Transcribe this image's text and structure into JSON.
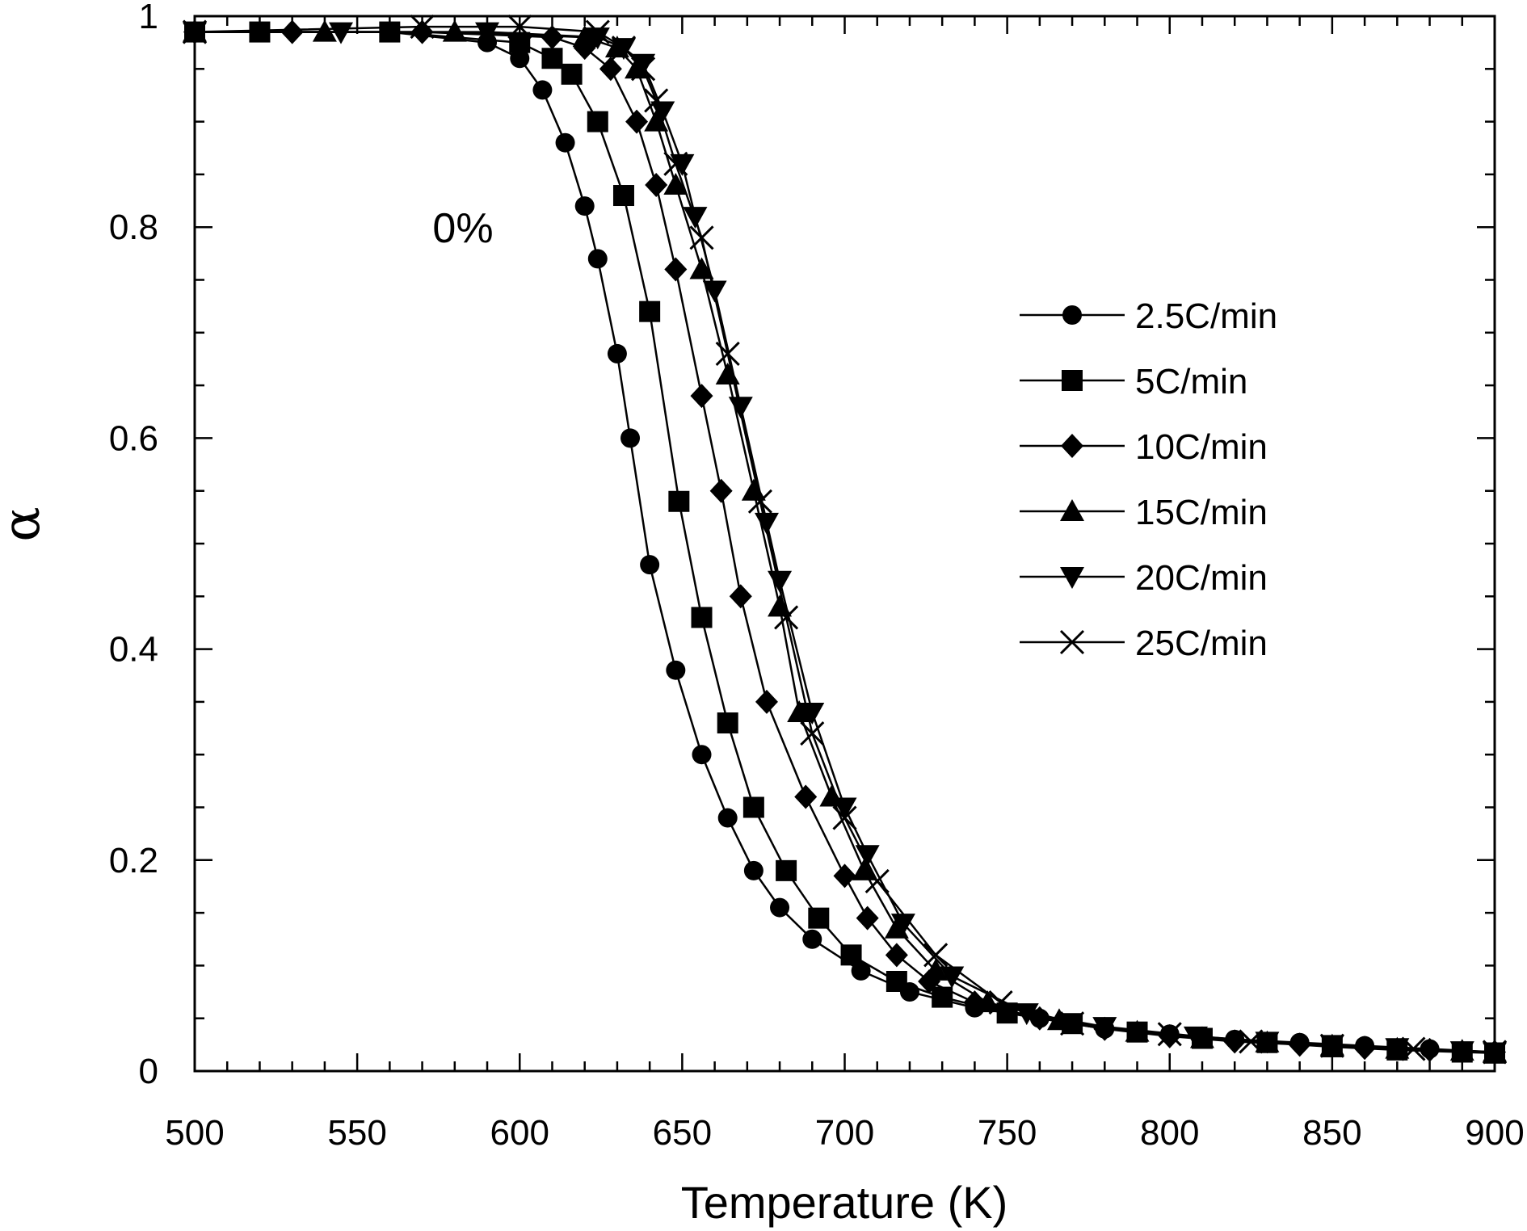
{
  "chart_data": {
    "type": "line",
    "title": "",
    "xlabel": "Temperature (K)",
    "ylabel": "α",
    "xlim": [
      500,
      900
    ],
    "ylim": [
      0,
      1
    ],
    "x_ticks": [
      "500",
      "550",
      "600",
      "650",
      "700",
      "750",
      "800",
      "850",
      "900"
    ],
    "y_ticks": [
      "0",
      "0.2",
      "0.4",
      "0.6",
      "0.8",
      "1"
    ],
    "annotation": "0%",
    "grid": false,
    "legend_position": "right",
    "series": [
      {
        "name": "2.5C/min",
        "marker": "circle",
        "x": [
          500,
          520,
          560,
          590,
          600,
          607,
          614,
          620,
          624,
          630,
          634,
          640,
          648,
          656,
          664,
          672,
          680,
          690,
          705,
          720,
          740,
          760,
          780,
          800,
          820,
          840,
          860,
          880,
          900
        ],
        "y": [
          0.985,
          0.985,
          0.985,
          0.975,
          0.96,
          0.93,
          0.88,
          0.82,
          0.77,
          0.68,
          0.6,
          0.48,
          0.38,
          0.3,
          0.24,
          0.19,
          0.155,
          0.125,
          0.095,
          0.075,
          0.06,
          0.05,
          0.04,
          0.035,
          0.03,
          0.027,
          0.024,
          0.021,
          0.018
        ]
      },
      {
        "name": "5C/min",
        "marker": "square",
        "x": [
          500,
          520,
          560,
          600,
          610,
          616,
          624,
          632,
          640,
          649,
          656,
          664,
          672,
          682,
          692,
          702,
          716,
          730,
          750,
          770,
          790,
          810,
          830,
          850,
          870,
          890,
          900
        ],
        "y": [
          0.985,
          0.985,
          0.985,
          0.975,
          0.96,
          0.945,
          0.9,
          0.83,
          0.72,
          0.54,
          0.43,
          0.33,
          0.25,
          0.19,
          0.145,
          0.11,
          0.085,
          0.07,
          0.055,
          0.045,
          0.037,
          0.031,
          0.027,
          0.023,
          0.02,
          0.018,
          0.017
        ]
      },
      {
        "name": "10C/min",
        "marker": "diamond",
        "x": [
          500,
          530,
          570,
          610,
          620,
          628,
          636,
          642,
          648,
          656,
          662,
          668,
          676,
          688,
          700,
          707,
          716,
          726,
          740,
          760,
          780,
          800,
          820,
          840,
          860,
          880,
          900
        ],
        "y": [
          0.985,
          0.985,
          0.985,
          0.98,
          0.97,
          0.95,
          0.9,
          0.84,
          0.76,
          0.64,
          0.55,
          0.45,
          0.35,
          0.26,
          0.185,
          0.145,
          0.11,
          0.085,
          0.065,
          0.05,
          0.04,
          0.033,
          0.028,
          0.025,
          0.022,
          0.02,
          0.018
        ]
      },
      {
        "name": "15C/min",
        "marker": "triangle-up",
        "x": [
          500,
          540,
          580,
          620,
          630,
          636,
          642,
          648,
          656,
          664,
          672,
          680,
          686,
          696,
          706,
          716,
          728,
          744,
          766,
          790,
          810,
          830,
          850,
          870,
          890,
          900
        ],
        "y": [
          0.985,
          0.985,
          0.985,
          0.98,
          0.97,
          0.95,
          0.9,
          0.84,
          0.76,
          0.66,
          0.55,
          0.44,
          0.34,
          0.26,
          0.19,
          0.135,
          0.095,
          0.065,
          0.048,
          0.037,
          0.031,
          0.027,
          0.024,
          0.021,
          0.019,
          0.018
        ]
      },
      {
        "name": "20C/min",
        "marker": "triangle-down",
        "x": [
          500,
          545,
          590,
          624,
          632,
          638,
          644,
          650,
          654,
          660,
          668,
          676,
          680,
          690,
          700,
          707,
          718,
          733,
          756,
          780,
          808,
          830,
          850,
          870,
          890,
          900
        ],
        "y": [
          0.985,
          0.985,
          0.985,
          0.98,
          0.97,
          0.955,
          0.91,
          0.86,
          0.81,
          0.74,
          0.63,
          0.52,
          0.465,
          0.34,
          0.25,
          0.205,
          0.14,
          0.09,
          0.055,
          0.042,
          0.033,
          0.028,
          0.025,
          0.022,
          0.019,
          0.018
        ]
      },
      {
        "name": "25C/min",
        "marker": "x",
        "x": [
          500,
          570,
          600,
          624,
          632,
          638,
          642,
          648,
          656,
          664,
          674,
          682,
          690,
          700,
          710,
          728,
          748,
          770,
          800,
          825,
          850,
          875,
          900
        ],
        "y": [
          0.985,
          0.99,
          0.99,
          0.985,
          0.97,
          0.95,
          0.92,
          0.86,
          0.79,
          0.68,
          0.54,
          0.43,
          0.32,
          0.24,
          0.18,
          0.11,
          0.065,
          0.045,
          0.035,
          0.028,
          0.024,
          0.021,
          0.018
        ]
      }
    ]
  }
}
